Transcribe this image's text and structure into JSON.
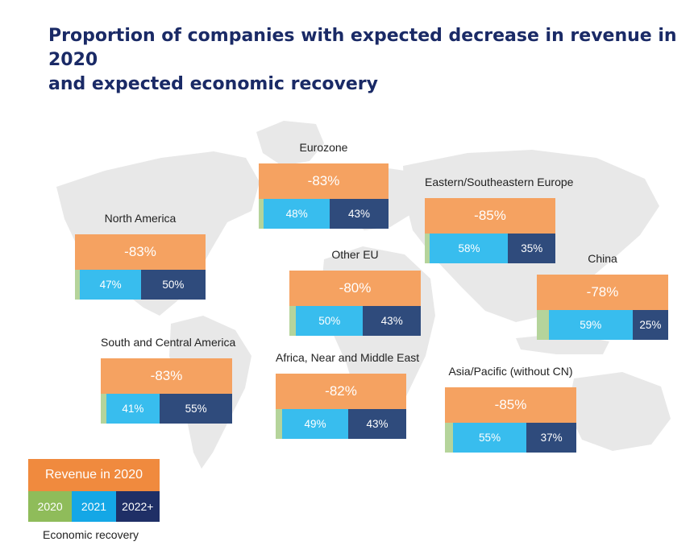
{
  "title_lines": [
    "Proportion of companies with expected decrease in revenue in 2020",
    "and expected economic recovery"
  ],
  "colors": {
    "revenue": "#f5a261",
    "y2020": "#b5d49b",
    "y2021": "#38bdee",
    "y2022": "#2f4b7c",
    "title": "#1a2a66",
    "map": "#e8e8e8"
  },
  "legend": {
    "revenue_label": "Revenue in 2020",
    "years": [
      "2020",
      "2021",
      "2022+"
    ],
    "caption": "Economic recovery"
  },
  "chart_data": {
    "type": "table",
    "title": "Proportion of companies with expected decrease in revenue in 2020 and expected economic recovery",
    "series_names": [
      "Revenue in 2020",
      "2020",
      "2021",
      "2022+"
    ],
    "regions": [
      {
        "name": "Eurozone",
        "revenue": "-83%",
        "recovery_2020": 0.04,
        "recovery_2021": "48%",
        "recovery_2022": "43%"
      },
      {
        "name": "Eastern/Southeastern Europe",
        "revenue": "-85%",
        "recovery_2020": 0.04,
        "recovery_2021": "58%",
        "recovery_2022": "35%"
      },
      {
        "name": "North America",
        "revenue": "-83%",
        "recovery_2020": 0.04,
        "recovery_2021": "47%",
        "recovery_2022": "50%"
      },
      {
        "name": "Other EU",
        "revenue": "-80%",
        "recovery_2020": 0.05,
        "recovery_2021": "50%",
        "recovery_2022": "43%"
      },
      {
        "name": "China",
        "revenue": "-78%",
        "recovery_2020": 0.09,
        "recovery_2021": "59%",
        "recovery_2022": "25%"
      },
      {
        "name": "South and Central America",
        "revenue": "-83%",
        "recovery_2020": 0.04,
        "recovery_2021": "41%",
        "recovery_2022": "55%"
      },
      {
        "name": "Africa, Near and Middle East",
        "revenue": "-82%",
        "recovery_2020": 0.05,
        "recovery_2021": "49%",
        "recovery_2022": "43%"
      },
      {
        "name": "Asia/Pacific (without CN)",
        "revenue": "-85%",
        "recovery_2020": 0.06,
        "recovery_2021": "55%",
        "recovery_2022": "37%"
      }
    ]
  }
}
